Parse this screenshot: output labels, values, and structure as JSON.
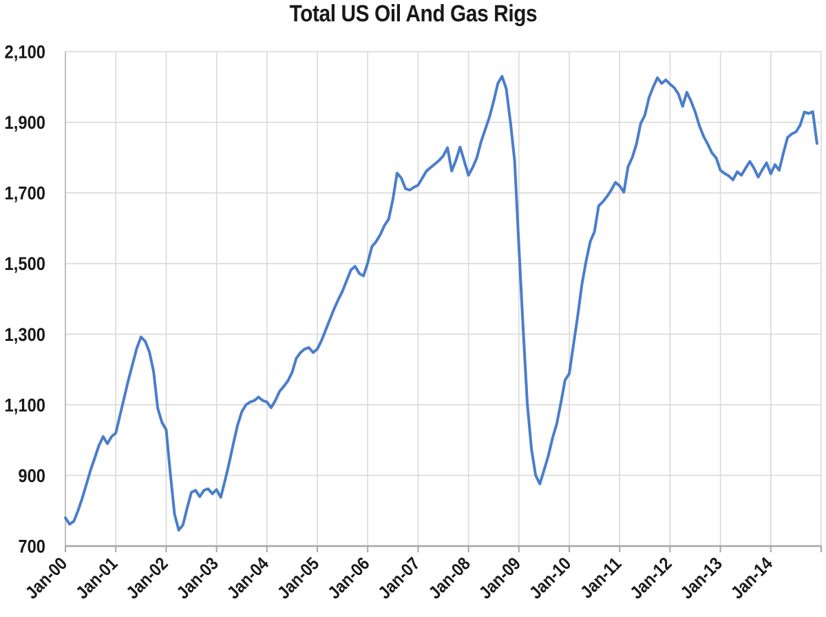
{
  "chart_data": {
    "type": "line",
    "title": "Total US Oil And Gas Rigs",
    "legend": "none",
    "grid": "on",
    "background_color": "#FFFFFF",
    "line_color": "#4B7DCB",
    "grid_color": "#D9D9D9",
    "axis_color": "#A6A6A6",
    "text_color": "#181818",
    "y_axis": {
      "min": 700,
      "max": 2100,
      "step": 200,
      "tick_labels": [
        "700",
        "900",
        "1,100",
        "1,300",
        "1,500",
        "1,700",
        "1,900",
        "2,100"
      ]
    },
    "x_axis": {
      "tick_labels": [
        "Jan-00",
        "Jan-01",
        "Jan-02",
        "Jan-03",
        "Jan-04",
        "Jan-05",
        "Jan-06",
        "Jan-07",
        "Jan-08",
        "Jan-09",
        "Jan-10",
        "Jan-11",
        "Jan-12",
        "Jan-13",
        "Jan-14"
      ],
      "gridline_years": 15,
      "label_rotation_deg": -45
    },
    "series": [
      {
        "name": "Total US oil and gas rigs",
        "x_start": "Jan-00",
        "x_end": "Dec-14",
        "frequency": "monthly",
        "values": [
          780,
          762,
          770,
          800,
          835,
          875,
          915,
          950,
          985,
          1010,
          990,
          1010,
          1020,
          1070,
          1120,
          1170,
          1215,
          1260,
          1292,
          1280,
          1250,
          1195,
          1090,
          1050,
          1030,
          905,
          790,
          745,
          760,
          808,
          852,
          858,
          840,
          858,
          862,
          848,
          860,
          838,
          885,
          935,
          990,
          1042,
          1080,
          1100,
          1108,
          1112,
          1122,
          1112,
          1108,
          1092,
          1112,
          1138,
          1152,
          1168,
          1192,
          1232,
          1248,
          1258,
          1262,
          1248,
          1258,
          1282,
          1312,
          1342,
          1372,
          1398,
          1422,
          1452,
          1482,
          1492,
          1472,
          1465,
          1502,
          1548,
          1562,
          1582,
          1608,
          1626,
          1682,
          1756,
          1742,
          1712,
          1708,
          1716,
          1722,
          1742,
          1762,
          1772,
          1782,
          1792,
          1805,
          1828,
          1762,
          1792,
          1830,
          1790,
          1750,
          1772,
          1800,
          1845,
          1880,
          1915,
          1960,
          2010,
          2030,
          1995,
          1900,
          1790,
          1550,
          1320,
          1105,
          975,
          900,
          876,
          915,
          955,
          1005,
          1045,
          1105,
          1170,
          1188,
          1270,
          1350,
          1440,
          1506,
          1562,
          1590,
          1663,
          1675,
          1690,
          1708,
          1730,
          1720,
          1702,
          1774,
          1800,
          1838,
          1896,
          1920,
          1970,
          2000,
          2026,
          2010,
          2020,
          2008,
          1998,
          1980,
          1945,
          1985,
          1960,
          1929,
          1890,
          1860,
          1838,
          1813,
          1799,
          1764,
          1755,
          1748,
          1737,
          1760,
          1750,
          1770,
          1789,
          1770,
          1745,
          1766,
          1785,
          1754,
          1780,
          1764,
          1813,
          1857,
          1867,
          1873,
          1892,
          1929,
          1925,
          1930,
          1840
        ]
      }
    ]
  }
}
